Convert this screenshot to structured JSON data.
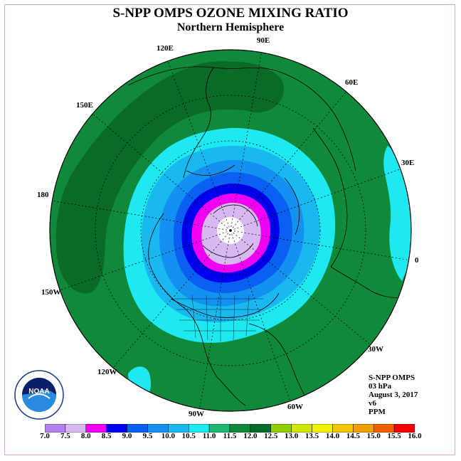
{
  "title": "S-NPP OMPS OZONE MIXING RATIO",
  "subtitle": "Northern Hemisphere",
  "longitude_labels": [
    "90E",
    "60E",
    "30E",
    "0",
    "30W",
    "60W",
    "90W",
    "120W",
    "150W",
    "180",
    "150E",
    "120E"
  ],
  "info": {
    "instrument": "S-NPP OMPS",
    "pressure": "03 hPa",
    "date": "August 3, 2017",
    "version": "v6",
    "units": "PPM"
  },
  "logo_text": "NOAA",
  "colorbar": {
    "ticks": [
      "7.0",
      "7.5",
      "8.0",
      "8.5",
      "9.0",
      "9.5",
      "10.0",
      "10.5",
      "11.0",
      "11.5",
      "12.0",
      "12.5",
      "13.0",
      "13.5",
      "14.0",
      "14.5",
      "15.0",
      "15.5",
      "16.0"
    ],
    "colors": [
      "#b580f0",
      "#d8b8f0",
      "#f000f0",
      "#0000f0",
      "#0a60f0",
      "#1490f0",
      "#1ab8f0",
      "#1ee8f0",
      "#1eb870",
      "#108a3a",
      "#0a6a28",
      "#90d000",
      "#d0e800",
      "#f0f000",
      "#f0c800",
      "#f0a000",
      "#f06000",
      "#f00000",
      "#a05a30"
    ]
  },
  "map_colors": {
    "background": "#108a3a",
    "ring_1": "#1ee8f0",
    "ring_2": "#1ab8f0",
    "ring_3": "#1490f0",
    "ring_4": "#0a60f0",
    "ring_5": "#0000f0",
    "ring_6": "#f000f0",
    "ring_7": "#d8b8f0",
    "core": "#ffffff",
    "dark_band": "#0a6a28"
  }
}
